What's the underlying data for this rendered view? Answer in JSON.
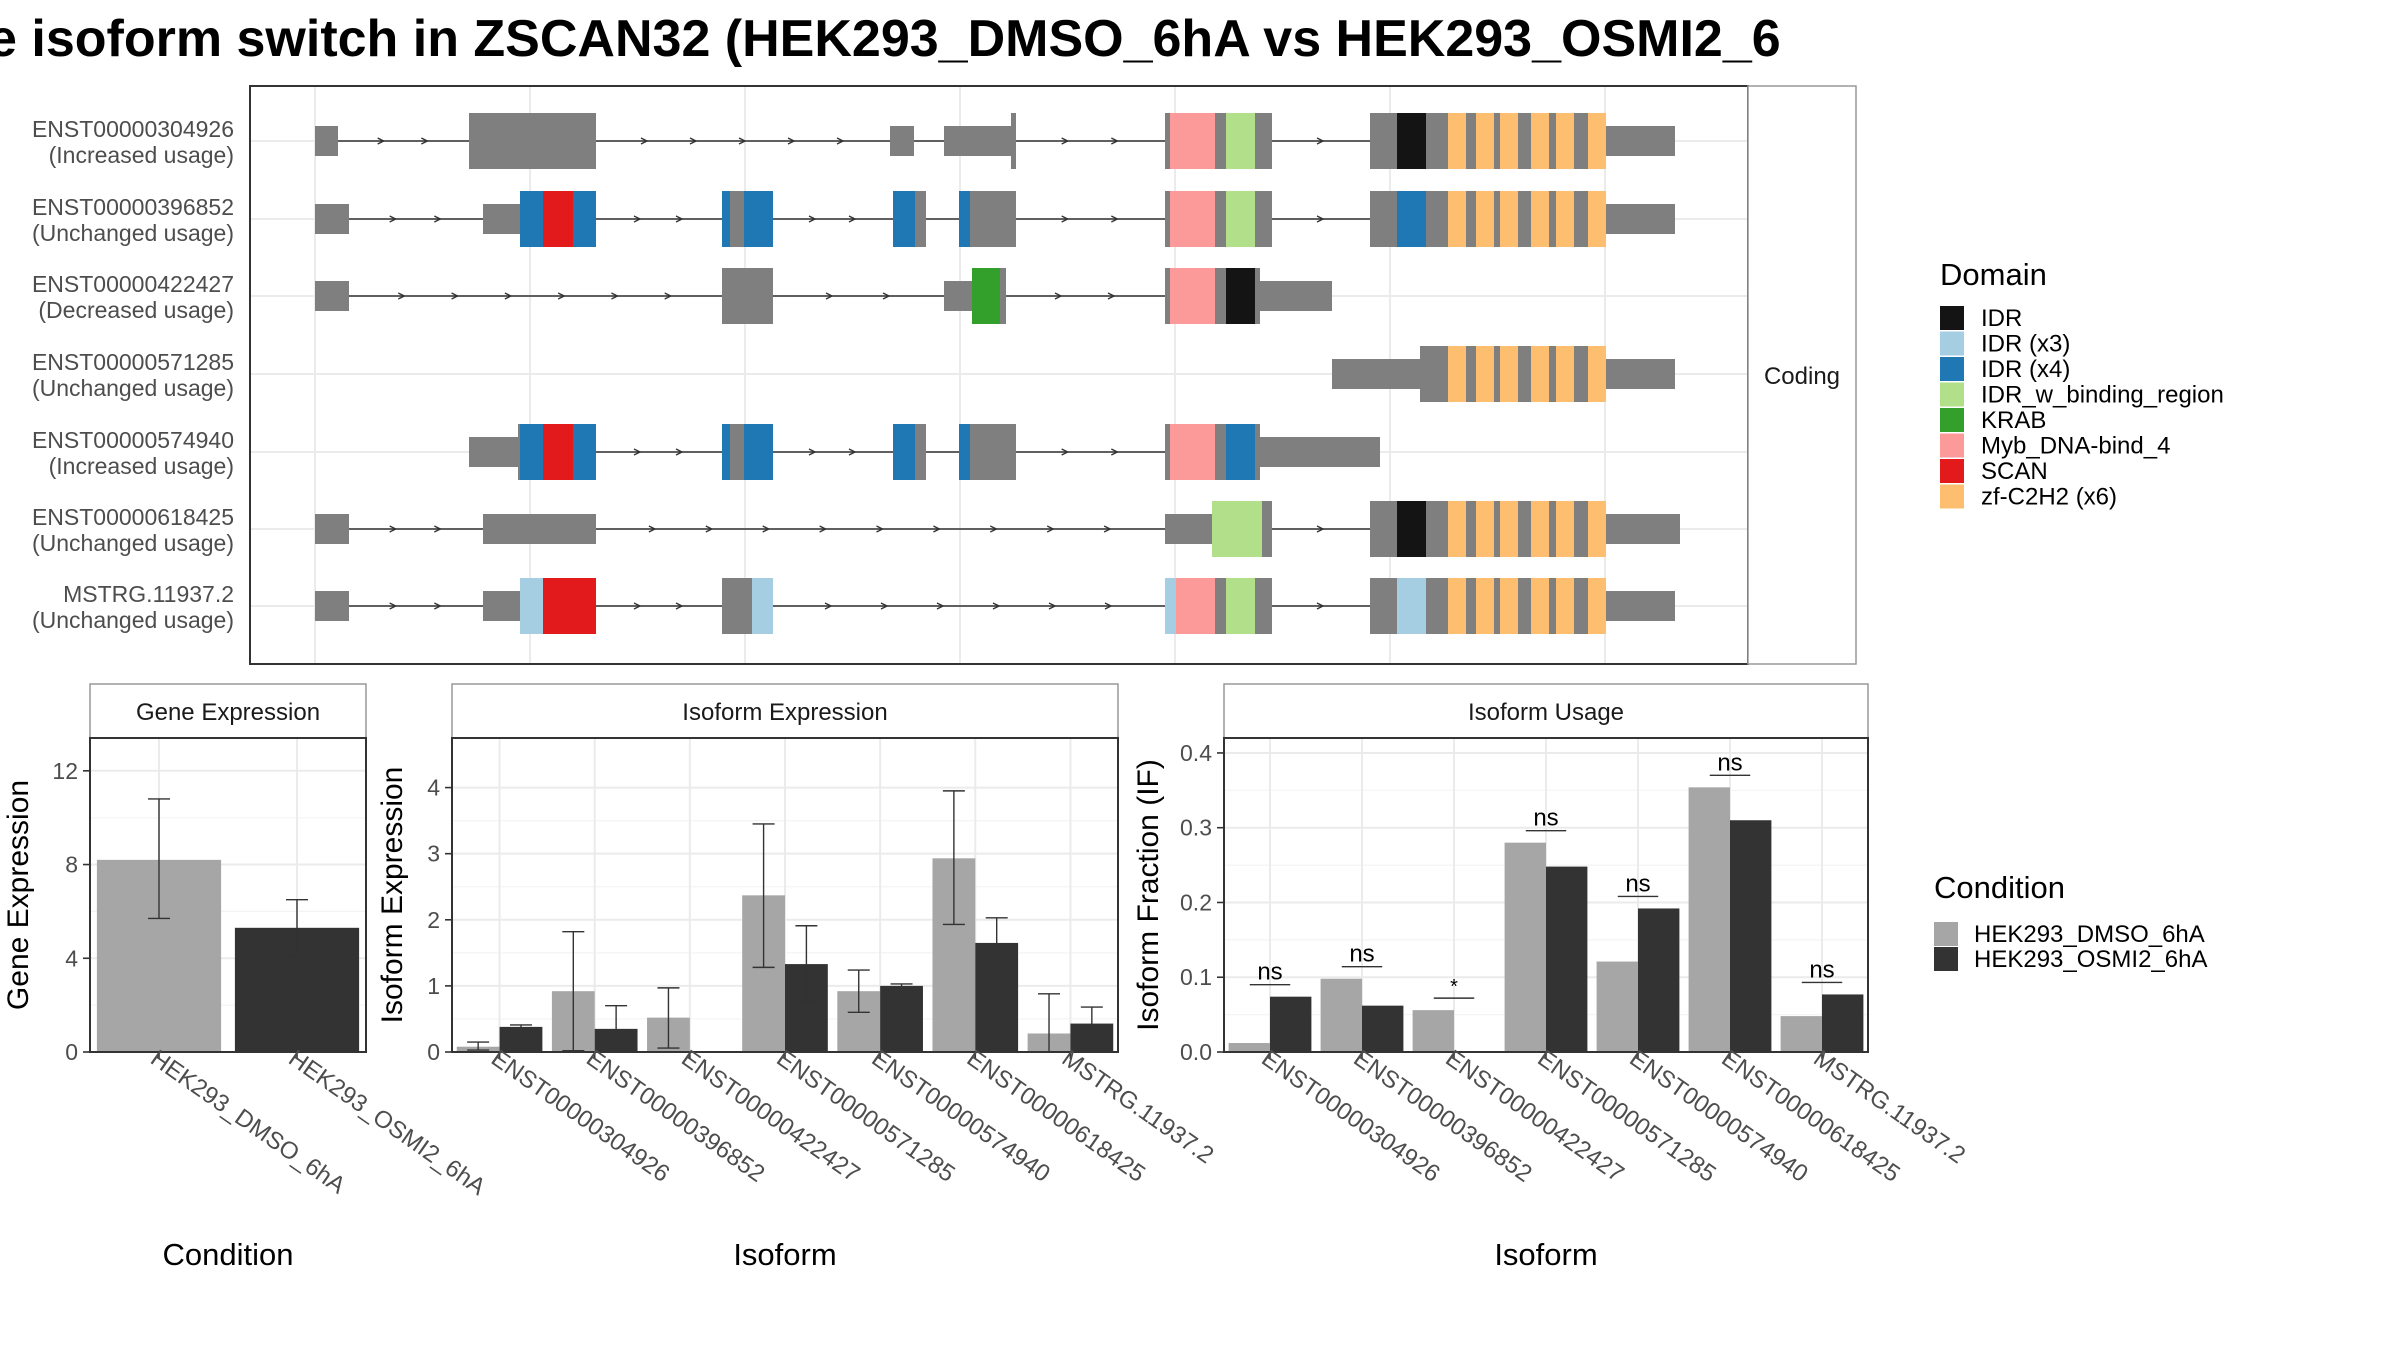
{
  "title": "e isoform switch in ZSCAN32 (HEK293_DMSO_6hA vs HEK293_OSMI2_6",
  "structure": {
    "strip": "Coding",
    "isoforms": [
      {
        "id": "ENST00000304926",
        "usage": "(Increased usage)"
      },
      {
        "id": "ENST00000396852",
        "usage": "(Unchanged usage)"
      },
      {
        "id": "ENST00000422427",
        "usage": "(Decreased usage)"
      },
      {
        "id": "ENST00000571285",
        "usage": "(Unchanged usage)"
      },
      {
        "id": "ENST00000574940",
        "usage": "(Increased usage)"
      },
      {
        "id": "ENST00000618425",
        "usage": "(Unchanged usage)"
      },
      {
        "id": "MSTRG.11937.2",
        "usage": "(Unchanged usage)"
      }
    ]
  },
  "domain_legend": {
    "title": "Domain",
    "items": [
      {
        "label": "IDR",
        "color": "#141414"
      },
      {
        "label": "IDR (x3)",
        "color": "#a6cee3"
      },
      {
        "label": "IDR (x4)",
        "color": "#1f78b4"
      },
      {
        "label": "IDR_w_binding_region",
        "color": "#b2df8a"
      },
      {
        "label": "KRAB",
        "color": "#33a02c"
      },
      {
        "label": "Myb_DNA-bind_4",
        "color": "#fb9a99"
      },
      {
        "label": "SCAN",
        "color": "#e31a1c"
      },
      {
        "label": "zf-C2H2 (x6)",
        "color": "#fdbf6f"
      }
    ]
  },
  "condition_legend": {
    "title": "Condition",
    "items": [
      {
        "label": "HEK293_DMSO_6hA",
        "color": "#a6a6a6"
      },
      {
        "label": "HEK293_OSMI2_6hA",
        "color": "#333333"
      }
    ]
  },
  "chart_data": [
    {
      "type": "bar",
      "title": "Gene Expression",
      "xlabel": "Condition",
      "ylabel": "Gene Expression",
      "ylim": [
        0,
        13.4
      ],
      "yticks": [
        0,
        4,
        8,
        12
      ],
      "categories": [
        "HEK293_DMSO_6hA",
        "HEK293_OSMI2_6hA"
      ],
      "values": [
        8.2,
        5.3
      ],
      "errors": [
        [
          5.7,
          10.8
        ],
        [
          4.1,
          6.5
        ]
      ]
    },
    {
      "type": "bar",
      "title": "Isoform Expression",
      "xlabel": "Isoform",
      "ylabel": "Isoform Expression",
      "ylim": [
        0,
        4.75
      ],
      "yticks": [
        0,
        1,
        2,
        3,
        4
      ],
      "categories": [
        "ENST00000304926",
        "ENST00000396852",
        "ENST00000422427",
        "ENST00000571285",
        "ENST00000574940",
        "ENST00000618425",
        "MSTRG.11937.2"
      ],
      "series": [
        {
          "name": "HEK293_DMSO_6hA",
          "values": [
            0.08,
            0.92,
            0.52,
            2.37,
            0.92,
            2.93,
            0.28
          ],
          "errors": [
            [
              0.03,
              0.15
            ],
            [
              0.02,
              1.82
            ],
            [
              0.06,
              0.97
            ],
            [
              1.28,
              3.45
            ],
            [
              0.6,
              1.24
            ],
            [
              1.93,
              3.95
            ],
            [
              0.0,
              0.88
            ]
          ]
        },
        {
          "name": "HEK293_OSMI2_6hA",
          "values": [
            0.38,
            0.35,
            0.0,
            1.33,
            1.0,
            1.65,
            0.43
          ],
          "errors": [
            [
              0.36,
              0.41
            ],
            [
              0.0,
              0.7
            ],
            [
              0.0,
              0.0
            ],
            [
              0.77,
              1.91
            ],
            [
              0.97,
              1.03
            ],
            [
              1.27,
              2.03
            ],
            [
              0.2,
              0.68
            ]
          ]
        }
      ]
    },
    {
      "type": "bar",
      "title": "Isoform Usage",
      "xlabel": "Isoform",
      "ylabel": "Isoform Fraction (IF)",
      "ylim": [
        0,
        0.42
      ],
      "yticks": [
        0.0,
        0.1,
        0.2,
        0.3,
        0.4
      ],
      "ytick_labels": [
        "0.0",
        "0.1",
        "0.2",
        "0.3",
        "0.4"
      ],
      "categories": [
        "ENST00000304926",
        "ENST00000396852",
        "ENST00000422427",
        "ENST00000571285",
        "ENST00000574940",
        "ENST00000618425",
        "MSTRG.11937.2"
      ],
      "series": [
        {
          "name": "HEK293_DMSO_6hA",
          "values": [
            0.012,
            0.098,
            0.056,
            0.28,
            0.121,
            0.354,
            0.048
          ]
        },
        {
          "name": "HEK293_OSMI2_6hA",
          "values": [
            0.074,
            0.062,
            0.0,
            0.248,
            0.192,
            0.31,
            0.077
          ]
        }
      ],
      "significance": [
        "ns",
        "ns",
        "*",
        "ns",
        "ns",
        "ns",
        "ns"
      ]
    }
  ]
}
